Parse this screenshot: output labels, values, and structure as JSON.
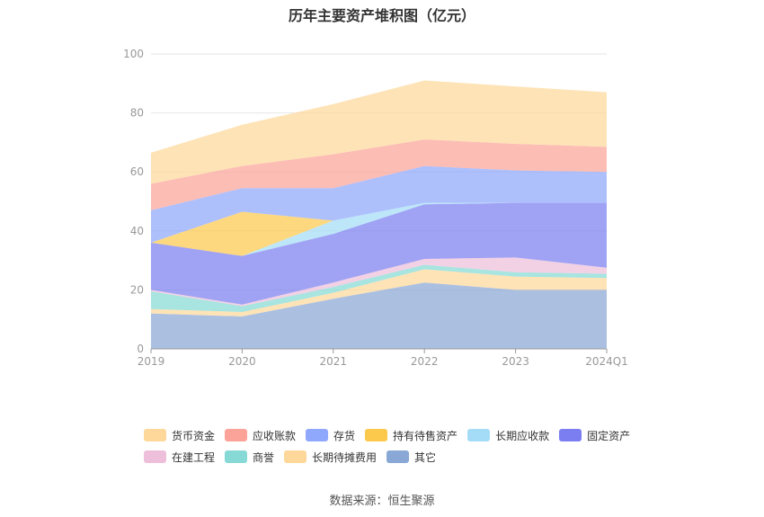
{
  "chart_data": {
    "type": "area",
    "title": "历年主要资产堆积图（亿元）",
    "source": "数据来源：恒生聚源",
    "categories": [
      "2019",
      "2020",
      "2021",
      "2022",
      "2023",
      "2024Q1"
    ],
    "ylim": [
      0,
      100
    ],
    "yticks": [
      "0",
      "20",
      "40",
      "60",
      "80",
      "100"
    ],
    "grid": true,
    "legend_position": "bottom",
    "series": [
      {
        "name": "其它",
        "color": "#8aa8d6",
        "values": [
          12.0,
          11.0,
          17.0,
          22.5,
          20.0,
          20.0
        ]
      },
      {
        "name": "长期待摊费用",
        "color": "#fdd89a",
        "values": [
          1.5,
          1.5,
          2.0,
          4.5,
          4.5,
          4.0
        ]
      },
      {
        "name": "商誉",
        "color": "#86d9d4",
        "values": [
          6.0,
          2.0,
          2.0,
          1.5,
          1.5,
          1.5
        ]
      },
      {
        "name": "在建工程",
        "color": "#eebfdb",
        "values": [
          0.5,
          0.5,
          1.5,
          2.0,
          5.0,
          2.0
        ]
      },
      {
        "name": "固定资产",
        "color": "#7b7ef0",
        "values": [
          16.0,
          16.5,
          16.5,
          18.5,
          18.5,
          22.0
        ]
      },
      {
        "name": "长期应收款",
        "color": "#a4dcf7",
        "values": [
          0,
          0,
          4.5,
          0.5,
          0,
          0
        ]
      },
      {
        "name": "持有待售资产",
        "color": "#fcc94c",
        "values": [
          0,
          15.0,
          0,
          0,
          0,
          0
        ]
      },
      {
        "name": "存货",
        "color": "#8fa8fb",
        "values": [
          11.0,
          8.0,
          11.0,
          12.5,
          11.0,
          10.5
        ]
      },
      {
        "name": "应收账款",
        "color": "#fba399",
        "values": [
          9.0,
          7.5,
          11.5,
          9.0,
          9.0,
          8.5
        ]
      },
      {
        "name": "货币资金",
        "color": "#fdd89a",
        "values": [
          10.5,
          14.0,
          17.0,
          20.0,
          19.5,
          18.5
        ]
      }
    ]
  }
}
